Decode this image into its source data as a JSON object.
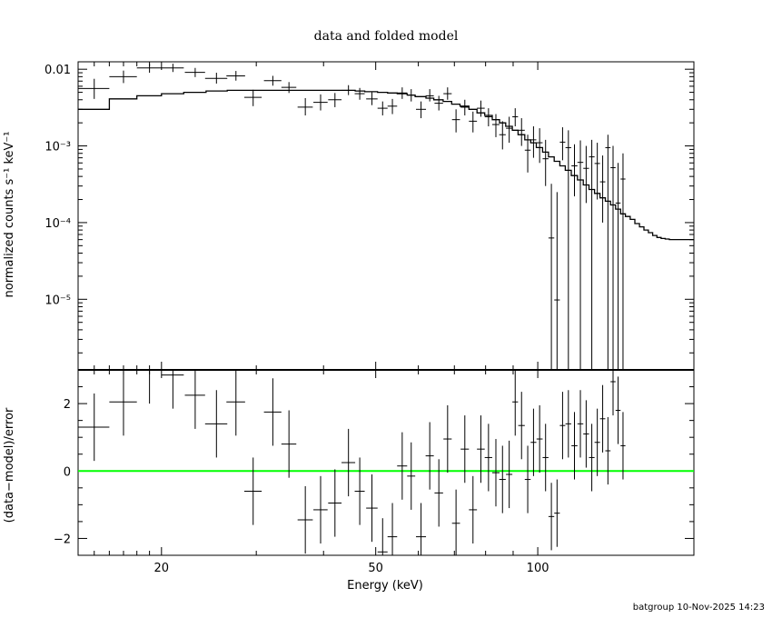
{
  "title": "data and folded model",
  "footer": "batgroup 10-Nov-2025 14:23",
  "colors": {
    "axes": "#000000",
    "zero_line": "#00ff00",
    "background": "#ffffff"
  },
  "chart_data": [
    {
      "type": "scatter",
      "panel": "spectrum",
      "title": "data and folded model",
      "xlabel": "Energy (keV)",
      "ylabel": "normalized counts s⁻¹ keV⁻¹",
      "xscale": "log",
      "yscale": "log",
      "xlim": [
        14,
        195
      ],
      "ylim": [
        1.2e-06,
        0.0125
      ],
      "y_ticks": [
        {
          "value": 0.01,
          "label": "0.01"
        },
        {
          "value": 0.001,
          "label": "10⁻³"
        },
        {
          "value": 0.0001,
          "label": "10⁻⁴"
        },
        {
          "value": 1e-05,
          "label": "10⁻⁵"
        }
      ],
      "series": [
        {
          "name": "",
          "kind": "data_with_errors",
          "points": [
            {
              "e": 15.0,
              "e_err": 1.0,
              "y": 0.0056,
              "y_lo": 0.0041,
              "y_hi": 0.0075
            },
            {
              "e": 17.0,
              "e_err": 1.0,
              "y": 0.008,
              "y_lo": 0.0066,
              "y_hi": 0.0096
            },
            {
              "e": 19.0,
              "e_err": 1.0,
              "y": 0.0104,
              "y_lo": 0.009,
              "y_hi": 0.0118
            },
            {
              "e": 21.0,
              "e_err": 1.0,
              "y": 0.0104,
              "y_lo": 0.0092,
              "y_hi": 0.0118
            },
            {
              "e": 23.1,
              "e_err": 1.0,
              "y": 0.0091,
              "y_lo": 0.0079,
              "y_hi": 0.0104
            },
            {
              "e": 25.3,
              "e_err": 1.2,
              "y": 0.0076,
              "y_lo": 0.0065,
              "y_hi": 0.009
            },
            {
              "e": 27.5,
              "e_err": 1.1,
              "y": 0.0082,
              "y_lo": 0.0071,
              "y_hi": 0.0095
            },
            {
              "e": 29.6,
              "e_err": 1.1,
              "y": 0.0043,
              "y_lo": 0.0033,
              "y_hi": 0.0054
            },
            {
              "e": 32.2,
              "e_err": 1.2,
              "y": 0.0071,
              "y_lo": 0.0061,
              "y_hi": 0.0082
            },
            {
              "e": 34.5,
              "e_err": 1.1,
              "y": 0.0058,
              "y_lo": 0.0049,
              "y_hi": 0.0068
            },
            {
              "e": 37.0,
              "e_err": 1.2,
              "y": 0.0032,
              "y_lo": 0.0025,
              "y_hi": 0.0042
            },
            {
              "e": 39.5,
              "e_err": 1.2,
              "y": 0.0037,
              "y_lo": 0.0029,
              "y_hi": 0.0047
            },
            {
              "e": 42.0,
              "e_err": 1.2,
              "y": 0.004,
              "y_lo": 0.0032,
              "y_hi": 0.0049
            },
            {
              "e": 44.5,
              "e_err": 1.3,
              "y": 0.0053,
              "y_lo": 0.0046,
              "y_hi": 0.0062
            },
            {
              "e": 46.7,
              "e_err": 1.0,
              "y": 0.0048,
              "y_lo": 0.004,
              "y_hi": 0.0057
            },
            {
              "e": 49.2,
              "e_err": 1.2,
              "y": 0.0041,
              "y_lo": 0.0034,
              "y_hi": 0.005
            },
            {
              "e": 51.5,
              "e_err": 1.1,
              "y": 0.0031,
              "y_lo": 0.0025,
              "y_hi": 0.0038
            },
            {
              "e": 53.7,
              "e_err": 1.1,
              "y": 0.0033,
              "y_lo": 0.0026,
              "y_hi": 0.0041
            },
            {
              "e": 56.0,
              "e_err": 1.2,
              "y": 0.0049,
              "y_lo": 0.0041,
              "y_hi": 0.0058
            },
            {
              "e": 58.2,
              "e_err": 1.0,
              "y": 0.0046,
              "y_lo": 0.0038,
              "y_hi": 0.0055
            },
            {
              "e": 60.7,
              "e_err": 1.3,
              "y": 0.003,
              "y_lo": 0.0023,
              "y_hi": 0.0038
            },
            {
              "e": 63.0,
              "e_err": 1.1,
              "y": 0.0045,
              "y_lo": 0.0038,
              "y_hi": 0.0055
            },
            {
              "e": 65.5,
              "e_err": 1.2,
              "y": 0.0036,
              "y_lo": 0.0029,
              "y_hi": 0.0045
            },
            {
              "e": 68.0,
              "e_err": 1.2,
              "y": 0.0048,
              "y_lo": 0.004,
              "y_hi": 0.0058
            },
            {
              "e": 70.5,
              "e_err": 1.2,
              "y": 0.0022,
              "y_lo": 0.0015,
              "y_hi": 0.003
            },
            {
              "e": 73.2,
              "e_err": 1.3,
              "y": 0.0032,
              "y_lo": 0.0025,
              "y_hi": 0.004
            },
            {
              "e": 75.8,
              "e_err": 1.3,
              "y": 0.0021,
              "y_lo": 0.0015,
              "y_hi": 0.0028
            },
            {
              "e": 78.4,
              "e_err": 1.3,
              "y": 0.0031,
              "y_lo": 0.0024,
              "y_hi": 0.0039
            },
            {
              "e": 81.0,
              "e_err": 1.3,
              "y": 0.0024,
              "y_lo": 0.0018,
              "y_hi": 0.0031
            },
            {
              "e": 83.6,
              "e_err": 1.3,
              "y": 0.0019,
              "y_lo": 0.0013,
              "y_hi": 0.0026
            },
            {
              "e": 86.0,
              "e_err": 1.2,
              "y": 0.0014,
              "y_lo": 0.0009,
              "y_hi": 0.0021
            },
            {
              "e": 88.5,
              "e_err": 1.2,
              "y": 0.0017,
              "y_lo": 0.0011,
              "y_hi": 0.0024
            },
            {
              "e": 90.8,
              "e_err": 1.1,
              "y": 0.0024,
              "y_lo": 0.0018,
              "y_hi": 0.0031
            },
            {
              "e": 93.3,
              "e_err": 1.3,
              "y": 0.0016,
              "y_lo": 0.001,
              "y_hi": 0.0023
            },
            {
              "e": 95.8,
              "e_err": 1.2,
              "y": 0.00088,
              "y_lo": 0.00045,
              "y_hi": 0.0014
            },
            {
              "e": 98.2,
              "e_err": 1.2,
              "y": 0.0012,
              "y_lo": 0.0007,
              "y_hi": 0.0018
            },
            {
              "e": 100.8,
              "e_err": 1.3,
              "y": 0.0011,
              "y_lo": 0.0006,
              "y_hi": 0.0017
            },
            {
              "e": 103.4,
              "e_err": 1.3,
              "y": 0.00068,
              "y_lo": 0.0003,
              "y_hi": 0.0012
            },
            {
              "e": 106.0,
              "e_err": 1.3,
              "y": 6.3e-05,
              "y_lo": 1.2e-06,
              "y_hi": 0.00032
            },
            {
              "e": 108.6,
              "e_err": 1.3,
              "y": 9.8e-06,
              "y_lo": 1.2e-06,
              "y_hi": 0.00025
            },
            {
              "e": 111.2,
              "e_err": 1.3,
              "y": 0.00112,
              "y_lo": 0.00065,
              "y_hi": 0.00175
            },
            {
              "e": 114.0,
              "e_err": 1.4,
              "y": 0.00095,
              "y_lo": 1.2e-06,
              "y_hi": 0.0016
            },
            {
              "e": 117.0,
              "e_err": 1.5,
              "y": 0.00055,
              "y_lo": 0.00022,
              "y_hi": 0.00105
            },
            {
              "e": 120.0,
              "e_err": 1.5,
              "y": 0.00061,
              "y_lo": 1.2e-06,
              "y_hi": 0.00118
            },
            {
              "e": 123.0,
              "e_err": 1.5,
              "y": 0.00051,
              "y_lo": 0.00018,
              "y_hi": 0.001
            },
            {
              "e": 126.0,
              "e_err": 1.5,
              "y": 0.00072,
              "y_lo": 1.2e-06,
              "y_hi": 0.0012
            },
            {
              "e": 129.0,
              "e_err": 1.5,
              "y": 0.00059,
              "y_lo": 0.0002,
              "y_hi": 0.0011
            },
            {
              "e": 132.0,
              "e_err": 1.5,
              "y": 0.00034,
              "y_lo": 0.0001,
              "y_hi": 0.00075
            },
            {
              "e": 135.0,
              "e_err": 1.5,
              "y": 0.00095,
              "y_lo": 1.2e-06,
              "y_hi": 0.0014
            },
            {
              "e": 138.0,
              "e_err": 1.5,
              "y": 0.00052,
              "y_lo": 1.2e-06,
              "y_hi": 0.001
            },
            {
              "e": 141.0,
              "e_err": 1.5,
              "y": 0.00018,
              "y_lo": 1.2e-06,
              "y_hi": 0.0006
            },
            {
              "e": 144.0,
              "e_err": 1.5,
              "y": 0.00037,
              "y_lo": 1.2e-06,
              "y_hi": 0.0008
            }
          ]
        },
        {
          "name": "",
          "kind": "folded_model_step",
          "edges": [
            14,
            16,
            18,
            20,
            22,
            24.2,
            26.5,
            28.6,
            30.7,
            33.4,
            35.6,
            38.2,
            40.7,
            43.2,
            45.8,
            47.7,
            50.4,
            52.6,
            54.8,
            57.2,
            59.2,
            62.0,
            64.1,
            66.7,
            69.2,
            71.7,
            74.5,
            77.1,
            79.7,
            82.3,
            84.9,
            87.2,
            89.7,
            91.9,
            94.6,
            97.0,
            99.4,
            102.1,
            104.7,
            107.3,
            109.9,
            112.5,
            115.4,
            118.5,
            121.5,
            124.5,
            127.5,
            130.5,
            133.5,
            136.5,
            139.5,
            142.5,
            145.5,
            148.5,
            151.5,
            154.5,
            157.5,
            160.5,
            163.5,
            166.5,
            169.5,
            172.5,
            175.5,
            178.5,
            181.5,
            184.5,
            187.5,
            190.5,
            195
          ],
          "values": [
            0.003,
            0.0041,
            0.0045,
            0.0048,
            0.005,
            0.0052,
            0.0053,
            0.0053,
            0.0053,
            0.0053,
            0.0053,
            0.0053,
            0.0053,
            0.0053,
            0.0052,
            0.0051,
            0.005,
            0.0049,
            0.0048,
            0.0046,
            0.0044,
            0.0042,
            0.004,
            0.0038,
            0.0035,
            0.0033,
            0.003,
            0.0027,
            0.0025,
            0.0022,
            0.002,
            0.0018,
            0.0016,
            0.0014,
            0.0012,
            0.0011,
            0.00095,
            0.00083,
            0.00072,
            0.00063,
            0.00055,
            0.00048,
            0.00041,
            0.00036,
            0.00031,
            0.00027,
            0.00024,
            0.00021,
            0.00019,
            0.00017,
            0.00015,
            0.00013,
            0.00012,
            0.00011,
            9.7e-05,
            8.8e-05,
            8e-05,
            7.4e-05,
            6.8e-05,
            6.4e-05,
            6.2e-05,
            6.1e-05,
            6e-05,
            6e-05,
            6e-05,
            6e-05,
            6e-05,
            6e-05
          ]
        }
      ]
    },
    {
      "type": "scatter",
      "panel": "residuals",
      "xlabel": "Energy (keV)",
      "ylabel": "(data−model)/error",
      "xscale": "log",
      "xlim": [
        14,
        195
      ],
      "ylim": [
        -2.5,
        3.0
      ],
      "x_ticks": [
        {
          "value": 20,
          "label": "20"
        },
        {
          "value": 50,
          "label": "50"
        },
        {
          "value": 100,
          "label": "100"
        }
      ],
      "y_ticks": [
        {
          "value": 2,
          "label": "2"
        },
        {
          "value": 0,
          "label": "0"
        },
        {
          "value": -2,
          "label": "−2"
        }
      ],
      "zero_line": 0,
      "points": [
        {
          "e": 15.0,
          "e_err": 1.0,
          "r": 1.3,
          "err": 1.0
        },
        {
          "e": 17.0,
          "e_err": 1.0,
          "r": 2.05,
          "err": 1.0
        },
        {
          "e": 19.0,
          "e_err": 1.0,
          "r": 3.0,
          "err": 1.0
        },
        {
          "e": 21.0,
          "e_err": 1.0,
          "r": 2.85,
          "err": 1.0
        },
        {
          "e": 23.1,
          "e_err": 1.0,
          "r": 2.25,
          "err": 1.0
        },
        {
          "e": 25.3,
          "e_err": 1.2,
          "r": 1.4,
          "err": 1.0
        },
        {
          "e": 27.5,
          "e_err": 1.1,
          "r": 2.05,
          "err": 1.0
        },
        {
          "e": 29.6,
          "e_err": 1.1,
          "r": -0.6,
          "err": 1.0
        },
        {
          "e": 32.2,
          "e_err": 1.2,
          "r": 1.75,
          "err": 1.0
        },
        {
          "e": 34.5,
          "e_err": 1.1,
          "r": 0.8,
          "err": 1.0
        },
        {
          "e": 37.0,
          "e_err": 1.2,
          "r": -1.45,
          "err": 1.0
        },
        {
          "e": 39.5,
          "e_err": 1.2,
          "r": -1.15,
          "err": 1.0
        },
        {
          "e": 42.0,
          "e_err": 1.2,
          "r": -0.95,
          "err": 1.0
        },
        {
          "e": 44.5,
          "e_err": 1.3,
          "r": 0.25,
          "err": 1.0
        },
        {
          "e": 46.7,
          "e_err": 1.0,
          "r": -0.6,
          "err": 1.0
        },
        {
          "e": 49.2,
          "e_err": 1.2,
          "r": -1.1,
          "err": 1.0
        },
        {
          "e": 51.5,
          "e_err": 1.1,
          "r": -2.4,
          "err": 1.0
        },
        {
          "e": 53.7,
          "e_err": 1.1,
          "r": -1.95,
          "err": 1.0
        },
        {
          "e": 56.0,
          "e_err": 1.2,
          "r": 0.15,
          "err": 1.0
        },
        {
          "e": 58.2,
          "e_err": 1.0,
          "r": -0.15,
          "err": 1.0
        },
        {
          "e": 60.7,
          "e_err": 1.3,
          "r": -1.95,
          "err": 1.0
        },
        {
          "e": 63.0,
          "e_err": 1.1,
          "r": 0.45,
          "err": 1.0
        },
        {
          "e": 65.5,
          "e_err": 1.2,
          "r": -0.65,
          "err": 1.0
        },
        {
          "e": 68.0,
          "e_err": 1.2,
          "r": 0.95,
          "err": 1.0
        },
        {
          "e": 70.5,
          "e_err": 1.2,
          "r": -1.55,
          "err": 1.0
        },
        {
          "e": 73.2,
          "e_err": 1.3,
          "r": 0.65,
          "err": 1.0
        },
        {
          "e": 75.8,
          "e_err": 1.3,
          "r": -1.15,
          "err": 1.0
        },
        {
          "e": 78.4,
          "e_err": 1.3,
          "r": 0.65,
          "err": 1.0
        },
        {
          "e": 81.0,
          "e_err": 1.3,
          "r": 0.4,
          "err": 1.0
        },
        {
          "e": 83.6,
          "e_err": 1.3,
          "r": -0.05,
          "err": 1.0
        },
        {
          "e": 86.0,
          "e_err": 1.2,
          "r": -0.25,
          "err": 1.0
        },
        {
          "e": 88.5,
          "e_err": 1.2,
          "r": -0.1,
          "err": 1.0
        },
        {
          "e": 90.8,
          "e_err": 1.1,
          "r": 2.05,
          "err": 1.0
        },
        {
          "e": 93.3,
          "e_err": 1.3,
          "r": 1.35,
          "err": 1.0
        },
        {
          "e": 95.8,
          "e_err": 1.2,
          "r": -0.25,
          "err": 1.0
        },
        {
          "e": 98.2,
          "e_err": 1.2,
          "r": 0.85,
          "err": 1.0
        },
        {
          "e": 100.8,
          "e_err": 1.3,
          "r": 0.95,
          "err": 1.0
        },
        {
          "e": 103.4,
          "e_err": 1.3,
          "r": 0.4,
          "err": 1.0
        },
        {
          "e": 106.0,
          "e_err": 1.3,
          "r": -1.35,
          "err": 1.0
        },
        {
          "e": 108.6,
          "e_err": 1.3,
          "r": -1.25,
          "err": 1.0
        },
        {
          "e": 111.2,
          "e_err": 1.3,
          "r": 1.35,
          "err": 1.0
        },
        {
          "e": 114.0,
          "e_err": 1.4,
          "r": 1.4,
          "err": 1.0
        },
        {
          "e": 117.0,
          "e_err": 1.5,
          "r": 0.75,
          "err": 1.0
        },
        {
          "e": 120.0,
          "e_err": 1.5,
          "r": 1.4,
          "err": 1.0
        },
        {
          "e": 123.0,
          "e_err": 1.5,
          "r": 1.1,
          "err": 1.0
        },
        {
          "e": 126.0,
          "e_err": 1.5,
          "r": 0.4,
          "err": 1.0
        },
        {
          "e": 129.0,
          "e_err": 1.5,
          "r": 0.85,
          "err": 1.0
        },
        {
          "e": 132.0,
          "e_err": 1.5,
          "r": 1.55,
          "err": 1.0
        },
        {
          "e": 135.0,
          "e_err": 1.5,
          "r": 0.6,
          "err": 1.0
        },
        {
          "e": 138.0,
          "e_err": 1.5,
          "r": 2.65,
          "err": 1.0
        },
        {
          "e": 141.0,
          "e_err": 1.5,
          "r": 1.8,
          "err": 1.0
        },
        {
          "e": 144.0,
          "e_err": 1.5,
          "r": 0.75,
          "err": 1.0
        }
      ]
    }
  ]
}
